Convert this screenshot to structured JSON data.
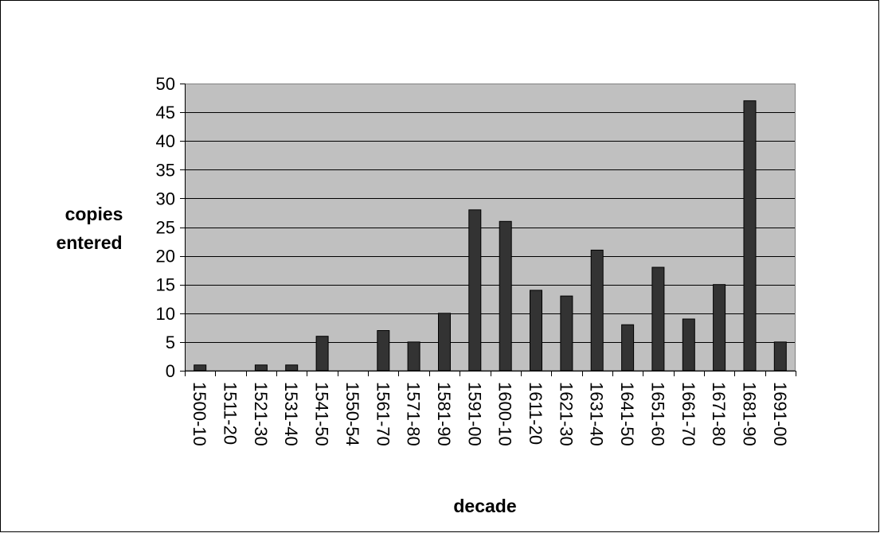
{
  "chart_data": {
    "type": "bar",
    "title": "",
    "xlabel": "decade",
    "ylabel": [
      "copies",
      "entered"
    ],
    "ylim": [
      0,
      50
    ],
    "yticks": [
      0,
      5,
      10,
      15,
      20,
      25,
      30,
      35,
      40,
      45,
      50
    ],
    "grid": true,
    "legend": "none",
    "categories": [
      "1500-10",
      "1511-20",
      "1521-30",
      "1531-40",
      "1541-50",
      "1550-54",
      "1561-70",
      "1571-80",
      "1581-90",
      "1591-00",
      "1600-10",
      "1611-20",
      "1621-30",
      "1631-40",
      "1641-50",
      "1651-60",
      "1661-70",
      "1671-80",
      "1681-90",
      "1691-00"
    ],
    "values": [
      1,
      0,
      1,
      1,
      6,
      0,
      7,
      5,
      10,
      28,
      26,
      14,
      13,
      21,
      8,
      18,
      9,
      15,
      47,
      5
    ],
    "colors": {
      "plot_background": "#c0c0c0",
      "bar": "#333333",
      "grid": "#000000"
    }
  }
}
